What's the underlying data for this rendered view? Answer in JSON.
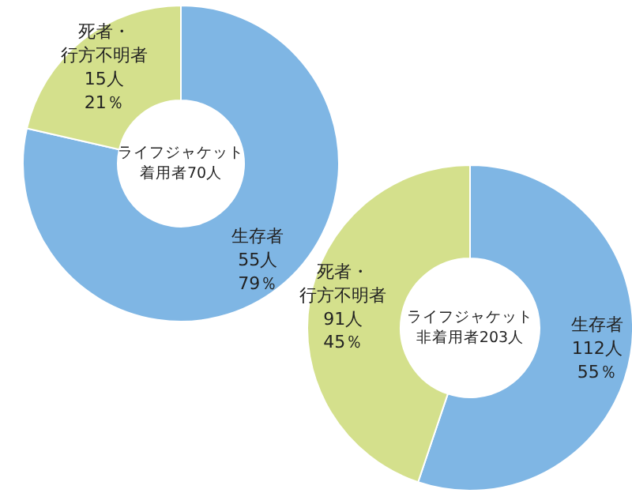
{
  "chart_data": [
    {
      "type": "donut",
      "title": "ライフジャケット着用者70人",
      "categories": [
        "生存者",
        "死者・行方不明者"
      ],
      "values": [
        55,
        15
      ],
      "value_labels": [
        "55人\n79％",
        "15人\n21％"
      ],
      "colors": [
        "#7fb6e4",
        "#d4e08c"
      ]
    },
    {
      "type": "donut",
      "title": "ライフジャケット非着用者203人",
      "categories": [
        "生存者",
        "死者・行方不明者"
      ],
      "values": [
        112,
        91
      ],
      "value_labels": [
        "112人\n55％",
        "91人\n45％"
      ],
      "colors": [
        "#7fb6e4",
        "#d4e08c"
      ]
    }
  ]
}
